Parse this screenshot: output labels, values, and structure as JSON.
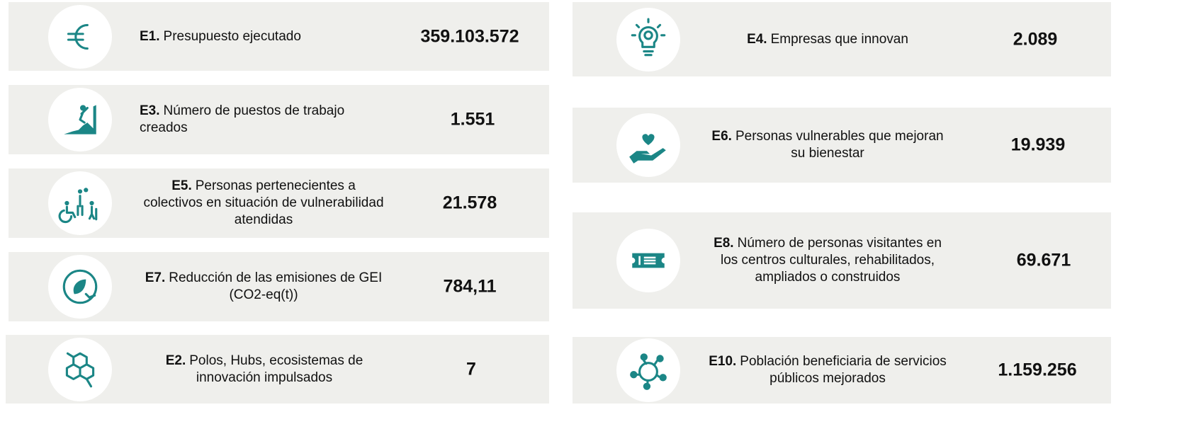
{
  "cards": [
    {
      "code": "E1.",
      "label": "Presupuesto ejecutado",
      "value": "359.103.572"
    },
    {
      "code": "E3.",
      "label": "Número de puestos de trabajo creados",
      "value": "1.551"
    },
    {
      "code": "E5.",
      "label": "Personas pertenecientes a colectivos en situación de vulnerabilidad atendidas",
      "value": "21.578"
    },
    {
      "code": "E7.",
      "label": "Reducción de las emisiones de GEI (CO2-eq(t))",
      "value": "784,11"
    },
    {
      "code": "E2.",
      "label": "Polos, Hubs, ecosistemas de innovación impulsados",
      "value": "7"
    },
    {
      "code": "E4.",
      "label": "Empresas que innovan",
      "value": "2.089"
    },
    {
      "code": "E6.",
      "label": "Personas vulnerables que mejoran su bienestar",
      "value": "19.939"
    },
    {
      "code": "E8.",
      "label": "Número de personas visitantes en los centros culturales, rehabilitados, ampliados o construidos",
      "value": "69.671"
    },
    {
      "code": "E10.",
      "label": "Población beneficiaria de servicios públicos mejorados",
      "value": "1.159.256"
    }
  ]
}
